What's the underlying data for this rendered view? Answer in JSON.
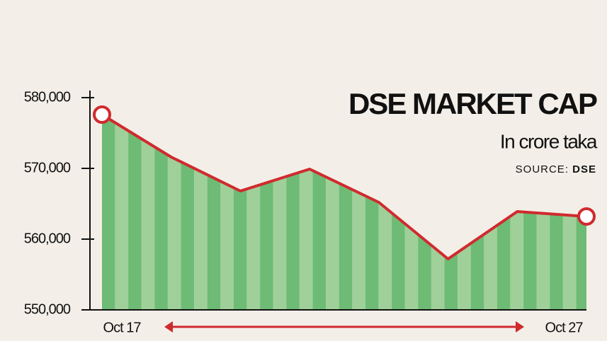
{
  "chart_data": {
    "type": "area",
    "title": "DSE MARKET CAP",
    "subtitle": "In crore taka",
    "source": {
      "label": "SOURCE:",
      "name": "DSE"
    },
    "categories": [
      "Oct 17",
      null,
      null,
      null,
      null,
      null,
      null,
      "Oct 27"
    ],
    "values": [
      577600,
      571600,
      566800,
      569900,
      565200,
      557200,
      563900,
      563200
    ],
    "line_color": "#d02a2e",
    "fill_colors": [
      "#6dbb74",
      "#9fd09a"
    ],
    "ylim": [
      550000,
      581000
    ],
    "yticks": [
      {
        "value": 550000,
        "label": "550,000"
      },
      {
        "value": 560000,
        "label": "560,000"
      },
      {
        "value": 570000,
        "label": "570,000"
      },
      {
        "value": 580000,
        "label": "580,000"
      }
    ]
  }
}
